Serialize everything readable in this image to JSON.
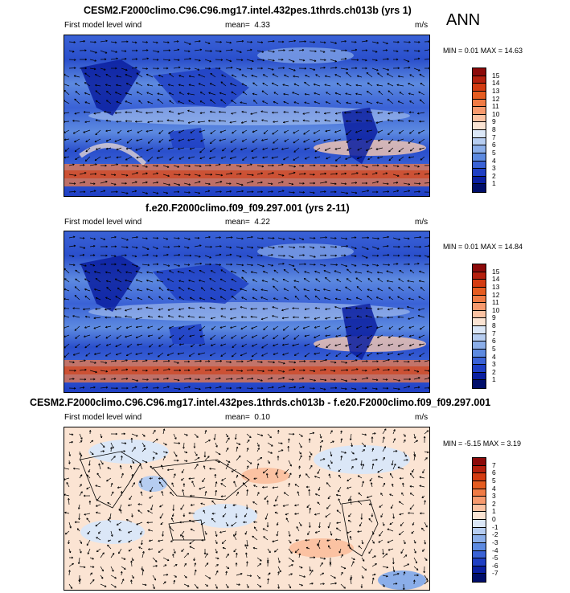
{
  "season": "ANN",
  "panels": [
    {
      "id": "p1",
      "title": "CESM2.F2000climo.C96.C96.mg17.intel.432pes.1thrds.ch013b (yrs 1)",
      "variable": "First model level wind",
      "mean_label": "mean=",
      "mean": "4.33",
      "units": "m/s",
      "minmax": "MIN =  0.01 MAX = 14.63",
      "type": "abs",
      "levels": [
        "15",
        "14",
        "13",
        "12",
        "11",
        "10",
        "9",
        "8",
        "7",
        "6",
        "5",
        "4",
        "3",
        "2",
        "1"
      ]
    },
    {
      "id": "p2",
      "title": "f.e20.F2000climo.f09_f09.297.001 (yrs 2-11)",
      "variable": "First model level wind",
      "mean_label": "mean=",
      "mean": "4.22",
      "units": "m/s",
      "minmax": "MIN =  0.01 MAX = 14.84",
      "type": "abs",
      "levels": [
        "15",
        "14",
        "13",
        "12",
        "11",
        "10",
        "9",
        "8",
        "7",
        "6",
        "5",
        "4",
        "3",
        "2",
        "1"
      ]
    },
    {
      "id": "p3",
      "title": "CESM2.F2000climo.C96.C96.mg17.intel.432pes.1thrds.ch013b - f.e20.F2000climo.f09_f09.297.001",
      "variable": "First model level wind",
      "mean_label": "mean=",
      "mean": "0.10",
      "units": "m/s",
      "minmax": "MIN = -5.15 MAX =  3.19",
      "type": "diff",
      "levels": [
        "7",
        "6",
        "5",
        "4",
        "3",
        "2",
        "1",
        "0",
        "-1",
        "-2",
        "-3",
        "-4",
        "-5",
        "-6",
        "-7"
      ]
    }
  ],
  "colors": {
    "abs": [
      "#8c0a0a",
      "#b5200e",
      "#d43c12",
      "#e65c20",
      "#f07b45",
      "#f79a6e",
      "#fbc2a2",
      "#fbe4d3",
      "#dbe7f7",
      "#b6cdf1",
      "#8baee9",
      "#5d8ae0",
      "#3a62d6",
      "#1f3fc4",
      "#0a1fa0",
      "#000e6a"
    ],
    "diff": [
      "#8c0a0a",
      "#b5200e",
      "#d43c12",
      "#e65c20",
      "#f07b45",
      "#f79a6e",
      "#fbc2a2",
      "#fbe4d3",
      "#dbe7f7",
      "#b6cdf1",
      "#8baee9",
      "#5d8ae0",
      "#3a62d6",
      "#1f3fc4",
      "#0a1fa0",
      "#000e6a"
    ]
  }
}
